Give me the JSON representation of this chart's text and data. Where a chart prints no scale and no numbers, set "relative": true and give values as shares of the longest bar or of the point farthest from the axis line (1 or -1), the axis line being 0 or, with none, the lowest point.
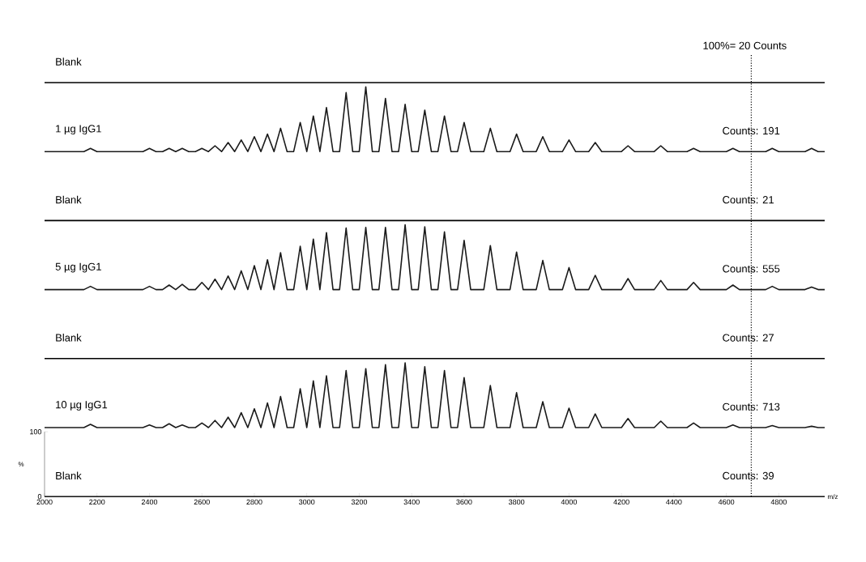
{
  "chart_data": [
    {
      "type": "other",
      "title": "Blank",
      "annotations": [
        "100%= 20 Counts"
      ]
    },
    {
      "type": "line",
      "title": "1 µg IgG1",
      "color": "#1a1a1a",
      "relative": true,
      "categories": [
        null,
        null,
        null,
        null,
        null,
        null,
        null,
        null,
        null,
        null,
        null,
        null,
        null,
        null,
        null,
        null,
        null,
        null,
        null,
        null,
        null,
        null,
        null,
        null,
        null,
        null,
        null,
        null,
        null,
        null,
        null,
        null,
        null,
        null,
        null,
        null,
        null,
        null,
        null,
        null,
        null,
        null,
        null,
        null,
        null,
        null,
        null,
        null,
        null,
        null,
        null,
        null,
        null,
        null,
        null,
        null,
        null,
        null,
        null,
        null,
        null,
        null,
        null,
        null,
        null,
        null,
        null,
        null,
        null,
        null,
        null,
        null,
        null,
        null,
        null,
        null,
        null,
        null,
        null,
        null,
        null,
        null,
        null,
        null,
        null,
        null,
        null,
        null,
        null,
        null,
        null,
        null,
        null,
        null,
        null,
        null,
        null,
        null,
        null,
        null,
        null,
        null,
        null,
        null,
        null,
        null,
        null,
        null,
        null,
        null,
        null,
        null,
        null,
        null,
        null,
        null,
        null,
        null,
        null,
        null
      ],
      "values": [
        0,
        0,
        0,
        0,
        0,
        0,
        0,
        0.05,
        0,
        0,
        0,
        0,
        0,
        0,
        0,
        0,
        0.05,
        0,
        0,
        0.05,
        0,
        0.05,
        0,
        0,
        0.05,
        0,
        0.09,
        0,
        0.14,
        0,
        0.18,
        0,
        0.23,
        0,
        0.27,
        0,
        0.36,
        0,
        0,
        0.45,
        0,
        0.55,
        0,
        0.68,
        0,
        0,
        0.91,
        0,
        0,
        1,
        0,
        0,
        0.82,
        0,
        0,
        0.73,
        0,
        0,
        0.64,
        0,
        0,
        0.55,
        0,
        0,
        0.45,
        0,
        0,
        0,
        0.36,
        0,
        0,
        0,
        0.27,
        0,
        0,
        0,
        0.23,
        0,
        0,
        0,
        0.18,
        0,
        0,
        0,
        0.14,
        0,
        0,
        0,
        0,
        0.09,
        0,
        0,
        0,
        0,
        0.09,
        0,
        0,
        0,
        0,
        0.05,
        0,
        0,
        0,
        0,
        0,
        0.05,
        0,
        0,
        0,
        0,
        0,
        0.05,
        0,
        0,
        0,
        0,
        0,
        0.05,
        0,
        0
      ],
      "annotations": [
        "Counts: 191"
      ]
    },
    {
      "type": "other",
      "title": "Blank",
      "annotations": [
        "Counts: 21"
      ]
    },
    {
      "type": "line",
      "title": "5 µg IgG1",
      "color": "#1a1a1a",
      "relative": true,
      "categories": [
        null,
        null,
        null,
        null,
        null,
        null,
        null,
        null,
        null,
        null,
        null,
        null,
        null,
        null,
        null,
        null,
        null,
        null,
        null,
        null,
        null,
        null,
        null,
        null,
        null,
        null,
        null,
        null,
        null,
        null,
        null,
        null,
        null,
        null,
        null,
        null,
        null,
        null,
        null,
        null,
        null,
        null,
        null,
        null,
        null,
        null,
        null,
        null,
        null,
        null,
        null,
        null,
        null,
        null,
        null,
        null,
        null,
        null,
        null,
        null,
        null,
        null,
        null,
        null,
        null,
        null,
        null,
        null,
        null,
        null,
        null,
        null,
        null,
        null,
        null,
        null,
        null,
        null,
        null,
        null,
        null,
        null,
        null,
        null,
        null,
        null,
        null,
        null,
        null,
        null,
        null,
        null,
        null,
        null,
        null,
        null,
        null,
        null,
        null,
        null,
        null,
        null,
        null,
        null,
        null,
        null,
        null,
        null,
        null,
        null,
        null,
        null,
        null,
        null,
        null,
        null,
        null,
        null,
        null,
        null
      ],
      "values": [
        0,
        0,
        0,
        0,
        0,
        0,
        0,
        0.05,
        0,
        0,
        0,
        0,
        0,
        0,
        0,
        0,
        0.05,
        0,
        0,
        0.07,
        0,
        0.08,
        0,
        0,
        0.11,
        0,
        0.16,
        0,
        0.21,
        0,
        0.29,
        0,
        0.37,
        0,
        0.46,
        0,
        0.57,
        0,
        0,
        0.67,
        0,
        0.78,
        0,
        0.88,
        0,
        0,
        0.95,
        0,
        0,
        0.96,
        0,
        0,
        0.96,
        0,
        0,
        1,
        0,
        0,
        0.97,
        0,
        0,
        0.89,
        0,
        0,
        0.76,
        0,
        0,
        0,
        0.68,
        0,
        0,
        0,
        0.58,
        0,
        0,
        0,
        0.45,
        0,
        0,
        0,
        0.34,
        0,
        0,
        0,
        0.22,
        0,
        0,
        0,
        0,
        0.17,
        0,
        0,
        0,
        0,
        0.14,
        0,
        0,
        0,
        0,
        0.11,
        0,
        0,
        0,
        0,
        0,
        0.07,
        0,
        0,
        0,
        0,
        0,
        0.05,
        0,
        0,
        0,
        0,
        0,
        0.04,
        0,
        0
      ],
      "annotations": [
        "Counts: 555"
      ]
    },
    {
      "type": "other",
      "title": "Blank",
      "annotations": [
        "Counts: 27"
      ]
    },
    {
      "type": "line",
      "title": "10 µg IgG1",
      "color": "#1a1a1a",
      "relative": true,
      "categories": [
        null,
        null,
        null,
        null,
        null,
        null,
        null,
        null,
        null,
        null,
        null,
        null,
        null,
        null,
        null,
        null,
        null,
        null,
        null,
        null,
        null,
        null,
        null,
        null,
        null,
        null,
        null,
        null,
        null,
        null,
        null,
        null,
        null,
        null,
        null,
        null,
        null,
        null,
        null,
        null,
        null,
        null,
        null,
        null,
        null,
        null,
        null,
        null,
        null,
        null,
        null,
        null,
        null,
        null,
        null,
        null,
        null,
        null,
        null,
        null,
        null,
        null,
        null,
        null,
        null,
        null,
        null,
        null,
        null,
        null,
        null,
        null,
        null,
        null,
        null,
        null,
        null,
        null,
        null,
        null,
        null,
        null,
        null,
        null,
        null,
        null,
        null,
        null,
        null,
        null,
        null,
        null,
        null,
        null,
        null,
        null,
        null,
        null,
        null,
        null,
        null,
        null,
        null,
        null,
        null,
        null,
        null,
        null,
        null,
        null,
        null,
        null,
        null,
        null,
        null,
        null,
        null,
        null,
        null,
        null
      ],
      "values": [
        0,
        0,
        0,
        0,
        0,
        0,
        0,
        0.05,
        0,
        0,
        0,
        0,
        0,
        0,
        0,
        0,
        0.04,
        0,
        0,
        0.06,
        0,
        0.04,
        0,
        0,
        0.07,
        0,
        0.11,
        0,
        0.16,
        0,
        0.23,
        0,
        0.29,
        0,
        0.38,
        0,
        0.48,
        0,
        0,
        0.6,
        0,
        0.72,
        0,
        0.8,
        0,
        0,
        0.88,
        0,
        0,
        0.91,
        0,
        0,
        0.97,
        0,
        0,
        1,
        0,
        0,
        0.94,
        0,
        0,
        0.88,
        0,
        0,
        0.77,
        0,
        0,
        0,
        0.65,
        0,
        0,
        0,
        0.54,
        0,
        0,
        0,
        0.4,
        0,
        0,
        0,
        0.3,
        0,
        0,
        0,
        0.21,
        0,
        0,
        0,
        0,
        0.14,
        0,
        0,
        0,
        0,
        0.1,
        0,
        0,
        0,
        0,
        0.07,
        0,
        0,
        0,
        0,
        0,
        0.04,
        0,
        0,
        0,
        0,
        0,
        0.03,
        0,
        0,
        0,
        0,
        0,
        0.02,
        0,
        0
      ],
      "annotations": [
        "Counts: 713"
      ]
    },
    {
      "type": "line",
      "title": "Blank",
      "x": [
        2000,
        4975
      ],
      "values": [
        0,
        0
      ],
      "color": "#1a1a1a",
      "xlim": [
        2000,
        4975
      ],
      "ylim": [
        0,
        100
      ],
      "xticks": [
        2000,
        2200,
        2400,
        2600,
        2800,
        3000,
        3200,
        3400,
        3600,
        3800,
        4000,
        4200,
        4400,
        4600,
        4800
      ],
      "yticks": [
        0,
        100
      ],
      "xlabel": "m/z",
      "ylabel": "%",
      "annotations": [
        "Counts: 39"
      ],
      "ref_lines": [
        {
          "axis": "x",
          "value": 4695,
          "line_style": "dotted"
        }
      ]
    }
  ]
}
